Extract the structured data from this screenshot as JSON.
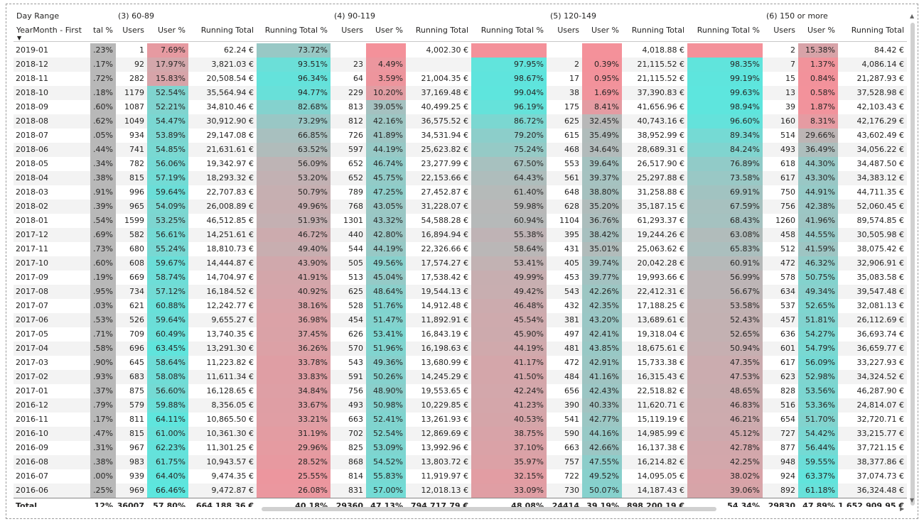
{
  "header": {
    "row_header_caption": "Day Range",
    "row_header_field": "YearMonth - First",
    "groups": [
      "(3) 60-89",
      "(4) 90-119",
      "(5) 120-149",
      "(6) 150 or more"
    ],
    "first_col_label": "tal %",
    "col_users": "Users",
    "col_user_pct": "User %",
    "col_running_total": "Running Total",
    "col_running_total_pct": "Running Total %"
  },
  "colors": {
    "teal": "#5ce6de",
    "red": "#f4919a",
    "grey": "#b8b8b8"
  },
  "rows": [
    {
      "m": "2019-01",
      "f": ".23%",
      "g": [
        [
          "1",
          "7.69%",
          "62.24 €",
          "73.72%"
        ],
        [
          "",
          "",
          "",
          "4,002.30 €",
          ""
        ],
        [
          "",
          "",
          "4,018.88 €",
          ""
        ],
        [
          "2",
          "15.38%",
          "84.42 €"
        ]
      ]
    },
    {
      "m": "2018-12",
      "f": ".17%",
      "g": [
        [
          "92",
          "17.97%",
          "3,821.03 €",
          "93.51%"
        ],
        [
          "23",
          "4.49%",
          "",
          "97.95%"
        ],
        [
          "2",
          "0.39%",
          "21,115.52 €",
          "98.35%"
        ],
        [
          "7",
          "1.37%",
          "4,086.14 €"
        ]
      ]
    },
    {
      "m": "2018-11",
      "f": ".72%",
      "g": [
        [
          "282",
          "15.83%",
          "20,508.54 €",
          "96.34%"
        ],
        [
          "64",
          "3.59%",
          "21,004.35 €",
          "98.67%"
        ],
        [
          "17",
          "0.95%",
          "21,115.52 €",
          "99.19%"
        ],
        [
          "15",
          "0.84%",
          "21,287.93 €"
        ]
      ]
    },
    {
      "m": "2018-10",
      "f": ".18%",
      "g": [
        [
          "1179",
          "52.54%",
          "35,564.94 €",
          "94.77%"
        ],
        [
          "229",
          "10.20%",
          "37,169.48 €",
          "99.04%"
        ],
        [
          "38",
          "1.69%",
          "37,390.83 €",
          "99.63%"
        ],
        [
          "13",
          "0.58%",
          "37,528.98 €"
        ]
      ]
    },
    {
      "m": "2018-09",
      "f": ".60%",
      "g": [
        [
          "1087",
          "52.21%",
          "34,810.46 €",
          "82.68%"
        ],
        [
          "813",
          "39.05%",
          "40,499.25 €",
          "96.19%"
        ],
        [
          "175",
          "8.41%",
          "41,656.96 €",
          "98.94%"
        ],
        [
          "39",
          "1.87%",
          "42,103.43 €"
        ]
      ]
    },
    {
      "m": "2018-08",
      "f": ".62%",
      "g": [
        [
          "1049",
          "54.47%",
          "30,912.90 €",
          "73.29%"
        ],
        [
          "812",
          "42.16%",
          "36,575.52 €",
          "86.72%"
        ],
        [
          "625",
          "32.45%",
          "40,743.16 €",
          "96.60%"
        ],
        [
          "160",
          "8.31%",
          "42,176.29 €"
        ]
      ]
    },
    {
      "m": "2018-07",
      "f": ".05%",
      "g": [
        [
          "934",
          "53.89%",
          "29,147.08 €",
          "66.85%"
        ],
        [
          "726",
          "41.89%",
          "34,531.94 €",
          "79.20%"
        ],
        [
          "615",
          "35.49%",
          "38,952.99 €",
          "89.34%"
        ],
        [
          "514",
          "29.66%",
          "43,602.49 €"
        ]
      ]
    },
    {
      "m": "2018-06",
      "f": ".44%",
      "g": [
        [
          "741",
          "54.85%",
          "21,631.61 €",
          "63.52%"
        ],
        [
          "597",
          "44.19%",
          "25,623.82 €",
          "75.24%"
        ],
        [
          "468",
          "34.64%",
          "28,689.31 €",
          "84.24%"
        ],
        [
          "493",
          "36.49%",
          "34,056.22 €"
        ]
      ]
    },
    {
      "m": "2018-05",
      "f": ".34%",
      "g": [
        [
          "782",
          "56.06%",
          "19,342.97 €",
          "56.09%"
        ],
        [
          "652",
          "46.74%",
          "23,277.99 €",
          "67.50%"
        ],
        [
          "553",
          "39.64%",
          "26,517.90 €",
          "76.89%"
        ],
        [
          "618",
          "44.30%",
          "34,487.50 €"
        ]
      ]
    },
    {
      "m": "2018-04",
      "f": ".38%",
      "g": [
        [
          "815",
          "57.19%",
          "18,293.32 €",
          "53.20%"
        ],
        [
          "652",
          "45.75%",
          "22,153.66 €",
          "64.43%"
        ],
        [
          "561",
          "39.37%",
          "25,297.88 €",
          "73.58%"
        ],
        [
          "617",
          "43.30%",
          "34,383.12 €"
        ]
      ]
    },
    {
      "m": "2018-03",
      "f": ".91%",
      "g": [
        [
          "996",
          "59.64%",
          "22,707.83 €",
          "50.79%"
        ],
        [
          "789",
          "47.25%",
          "27,452.87 €",
          "61.40%"
        ],
        [
          "648",
          "38.80%",
          "31,258.88 €",
          "69.91%"
        ],
        [
          "750",
          "44.91%",
          "44,711.35 €"
        ]
      ]
    },
    {
      "m": "2018-02",
      "f": ".39%",
      "g": [
        [
          "965",
          "54.09%",
          "26,008.89 €",
          "49.96%"
        ],
        [
          "768",
          "43.05%",
          "31,228.07 €",
          "59.98%"
        ],
        [
          "628",
          "35.20%",
          "35,187.15 €",
          "67.59%"
        ],
        [
          "756",
          "42.38%",
          "52,060.45 €"
        ]
      ]
    },
    {
      "m": "2018-01",
      "f": ".54%",
      "g": [
        [
          "1599",
          "53.25%",
          "46,512.85 €",
          "51.93%"
        ],
        [
          "1301",
          "43.32%",
          "54,588.28 €",
          "60.94%"
        ],
        [
          "1104",
          "36.76%",
          "61,293.37 €",
          "68.43%"
        ],
        [
          "1260",
          "41.96%",
          "89,574.85 €"
        ]
      ]
    },
    {
      "m": "2017-12",
      "f": ".69%",
      "g": [
        [
          "582",
          "56.61%",
          "14,251.61 €",
          "46.72%"
        ],
        [
          "440",
          "42.80%",
          "16,894.94 €",
          "55.38%"
        ],
        [
          "395",
          "38.42%",
          "19,244.26 €",
          "63.08%"
        ],
        [
          "458",
          "44.55%",
          "30,505.98 €"
        ]
      ]
    },
    {
      "m": "2017-11",
      "f": ".73%",
      "g": [
        [
          "680",
          "55.24%",
          "18,810.73 €",
          "49.40%"
        ],
        [
          "544",
          "44.19%",
          "22,326.66 €",
          "58.64%"
        ],
        [
          "431",
          "35.01%",
          "25,063.62 €",
          "65.83%"
        ],
        [
          "512",
          "41.59%",
          "38,075.42 €"
        ]
      ]
    },
    {
      "m": "2017-10",
      "f": ".60%",
      "g": [
        [
          "608",
          "59.67%",
          "14,444.87 €",
          "43.90%"
        ],
        [
          "505",
          "49.56%",
          "17,574.27 €",
          "53.41%"
        ],
        [
          "405",
          "39.74%",
          "20,042.28 €",
          "60.91%"
        ],
        [
          "472",
          "46.32%",
          "32,906.91 €"
        ]
      ]
    },
    {
      "m": "2017-09",
      "f": ".19%",
      "g": [
        [
          "669",
          "58.74%",
          "14,704.97 €",
          "41.91%"
        ],
        [
          "513",
          "45.04%",
          "17,538.42 €",
          "49.99%"
        ],
        [
          "453",
          "39.77%",
          "19,993.66 €",
          "56.99%"
        ],
        [
          "578",
          "50.75%",
          "35,083.58 €"
        ]
      ]
    },
    {
      "m": "2017-08",
      "f": ".95%",
      "g": [
        [
          "734",
          "57.12%",
          "16,184.52 €",
          "40.92%"
        ],
        [
          "625",
          "48.64%",
          "19,544.13 €",
          "49.42%"
        ],
        [
          "543",
          "42.26%",
          "22,412.31 €",
          "56.67%"
        ],
        [
          "634",
          "49.34%",
          "39,547.48 €"
        ]
      ]
    },
    {
      "m": "2017-07",
      "f": ".03%",
      "g": [
        [
          "621",
          "60.88%",
          "12,242.77 €",
          "38.16%"
        ],
        [
          "528",
          "51.76%",
          "14,912.48 €",
          "46.48%"
        ],
        [
          "432",
          "42.35%",
          "17,188.25 €",
          "53.58%"
        ],
        [
          "537",
          "52.65%",
          "32,081.13 €"
        ]
      ]
    },
    {
      "m": "2017-06",
      "f": ".53%",
      "g": [
        [
          "526",
          "59.64%",
          "9,655.27 €",
          "36.98%"
        ],
        [
          "454",
          "51.47%",
          "11,892.91 €",
          "45.54%"
        ],
        [
          "381",
          "43.20%",
          "13,689.61 €",
          "52.43%"
        ],
        [
          "457",
          "51.81%",
          "26,112.69 €"
        ]
      ]
    },
    {
      "m": "2017-05",
      "f": ".71%",
      "g": [
        [
          "709",
          "60.49%",
          "13,740.35 €",
          "37.45%"
        ],
        [
          "626",
          "53.41%",
          "16,843.19 €",
          "45.90%"
        ],
        [
          "497",
          "42.41%",
          "19,318.04 €",
          "52.65%"
        ],
        [
          "636",
          "54.27%",
          "36,693.74 €"
        ]
      ]
    },
    {
      "m": "2017-04",
      "f": ".58%",
      "g": [
        [
          "696",
          "63.45%",
          "13,291.30 €",
          "36.26%"
        ],
        [
          "570",
          "51.96%",
          "16,198.63 €",
          "44.19%"
        ],
        [
          "481",
          "43.85%",
          "18,675.61 €",
          "50.94%"
        ],
        [
          "601",
          "54.79%",
          "36,659.77 €"
        ]
      ]
    },
    {
      "m": "2017-03",
      "f": ".90%",
      "g": [
        [
          "645",
          "58.64%",
          "11,223.82 €",
          "33.78%"
        ],
        [
          "543",
          "49.36%",
          "13,680.99 €",
          "41.17%"
        ],
        [
          "472",
          "42.91%",
          "15,733.38 €",
          "47.35%"
        ],
        [
          "617",
          "56.09%",
          "33,227.93 €"
        ]
      ]
    },
    {
      "m": "2017-02",
      "f": ".93%",
      "g": [
        [
          "683",
          "58.08%",
          "11,611.34 €",
          "33.83%"
        ],
        [
          "591",
          "50.26%",
          "14,245.29 €",
          "41.50%"
        ],
        [
          "484",
          "41.16%",
          "16,315.43 €",
          "47.53%"
        ],
        [
          "623",
          "52.98%",
          "34,324.52 €"
        ]
      ]
    },
    {
      "m": "2017-01",
      "f": ".37%",
      "g": [
        [
          "875",
          "56.60%",
          "16,128.65 €",
          "34.84%"
        ],
        [
          "756",
          "48.90%",
          "19,553.65 €",
          "42.24%"
        ],
        [
          "656",
          "42.43%",
          "22,518.82 €",
          "48.65%"
        ],
        [
          "828",
          "53.56%",
          "46,287.90 €"
        ]
      ]
    },
    {
      "m": "2016-12",
      "f": ".79%",
      "g": [
        [
          "579",
          "59.88%",
          "8,356.05 €",
          "33.67%"
        ],
        [
          "493",
          "50.98%",
          "10,229.85 €",
          "41.23%"
        ],
        [
          "390",
          "40.33%",
          "11,620.71 €",
          "46.83%"
        ],
        [
          "516",
          "53.36%",
          "24,814.07 €"
        ]
      ]
    },
    {
      "m": "2016-11",
      "f": ".17%",
      "g": [
        [
          "811",
          "64.11%",
          "10,865.50 €",
          "33.21%"
        ],
        [
          "663",
          "52.41%",
          "13,261.93 €",
          "40.53%"
        ],
        [
          "541",
          "42.77%",
          "15,119.19 €",
          "46.21%"
        ],
        [
          "654",
          "51.70%",
          "32,720.71 €"
        ]
      ]
    },
    {
      "m": "2016-10",
      "f": ".47%",
      "g": [
        [
          "815",
          "61.00%",
          "10,361.30 €",
          "31.19%"
        ],
        [
          "702",
          "52.54%",
          "12,869.69 €",
          "38.75%"
        ],
        [
          "590",
          "44.16%",
          "14,985.99 €",
          "45.12%"
        ],
        [
          "727",
          "54.42%",
          "33,215.77 €"
        ]
      ]
    },
    {
      "m": "2016-09",
      "f": ".31%",
      "g": [
        [
          "967",
          "62.23%",
          "11,301.25 €",
          "29.96%"
        ],
        [
          "825",
          "53.09%",
          "13,992.96 €",
          "37.10%"
        ],
        [
          "663",
          "42.66%",
          "16,137.38 €",
          "42.78%"
        ],
        [
          "877",
          "56.44%",
          "37,721.15 €"
        ]
      ]
    },
    {
      "m": "2016-08",
      "f": ".38%",
      "g": [
        [
          "983",
          "61.75%",
          "10,943.57 €",
          "28.52%"
        ],
        [
          "868",
          "54.52%",
          "13,803.72 €",
          "35.97%"
        ],
        [
          "757",
          "47.55%",
          "16,214.82 €",
          "42.25%"
        ],
        [
          "948",
          "59.55%",
          "38,377.86 €"
        ]
      ]
    },
    {
      "m": "2016-07",
      "f": ".00%",
      "g": [
        [
          "939",
          "64.40%",
          "9,474.35 €",
          "25.55%"
        ],
        [
          "814",
          "55.83%",
          "11,919.97 €",
          "32.15%"
        ],
        [
          "722",
          "49.52%",
          "14,095.05 €",
          "38.02%"
        ],
        [
          "924",
          "63.37%",
          "37,074.73 €"
        ]
      ]
    },
    {
      "m": "2016-06",
      "f": ".25%",
      "g": [
        [
          "969",
          "66.46%",
          "9,472.87 €",
          "26.08%"
        ],
        [
          "831",
          "57.00%",
          "12,018.13 €",
          "33.09%"
        ],
        [
          "730",
          "50.07%",
          "14,187.43 €",
          "39.06%"
        ],
        [
          "892",
          "61.18%",
          "36,324.48 €"
        ]
      ]
    }
  ],
  "total": {
    "label": "Total",
    "f": ".12%",
    "g": [
      [
        "36007",
        "57.80%",
        "664,188.36 €",
        "40.18%"
      ],
      [
        "29360",
        "47.13%",
        "794,717.79 €",
        "48.08%"
      ],
      [
        "24414",
        "39.19%",
        "898,200.19 €",
        "54.34%"
      ],
      [
        "29830",
        "47.89%",
        "1,652,909.95 €"
      ]
    ]
  }
}
